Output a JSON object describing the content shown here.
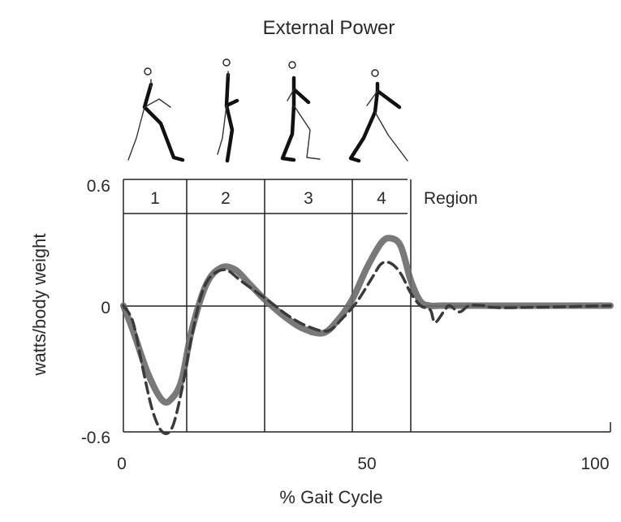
{
  "chart_data": {
    "type": "line",
    "title": "External Power",
    "xlabel": "% Gait Cycle",
    "ylabel": "watts/body weight",
    "xlim": [
      0,
      100
    ],
    "ylim": [
      -0.6,
      0.6
    ],
    "x_ticks": [
      "0",
      "50",
      "100"
    ],
    "y_ticks": [
      "0.6",
      "0",
      "-0.6"
    ],
    "regions_title": "Region",
    "regions": [
      {
        "label": "1",
        "start": 0,
        "end": 13
      },
      {
        "label": "2",
        "start": 13,
        "end": 29
      },
      {
        "label": "3",
        "start": 29,
        "end": 47
      },
      {
        "label": "4",
        "start": 47,
        "end": 59
      }
    ],
    "series": [
      {
        "style": "solid-thick",
        "color": "#6a6a6a",
        "x": [
          0,
          2,
          5,
          8,
          10,
          12,
          14,
          17,
          20,
          23,
          26,
          29,
          33,
          37,
          41,
          44,
          47,
          50,
          53,
          55,
          57,
          59,
          61,
          63,
          65,
          70,
          80,
          100
        ],
        "y": [
          0,
          -0.12,
          -0.32,
          -0.45,
          -0.44,
          -0.35,
          -0.12,
          0.1,
          0.18,
          0.17,
          0.1,
          0.03,
          -0.05,
          -0.11,
          -0.13,
          -0.07,
          0.03,
          0.18,
          0.3,
          0.32,
          0.28,
          0.12,
          0.02,
          0,
          0,
          0,
          0,
          0
        ]
      },
      {
        "style": "dashed",
        "color": "#3a3a3a",
        "x": [
          0,
          2,
          4,
          6,
          8,
          10,
          12,
          14,
          16,
          18,
          21,
          24,
          27,
          30,
          34,
          38,
          42,
          45,
          48,
          51,
          53,
          55,
          57,
          59,
          61,
          63,
          64,
          66,
          67,
          69,
          71,
          74,
          78,
          100
        ],
        "y": [
          0,
          -0.08,
          -0.3,
          -0.5,
          -0.6,
          -0.58,
          -0.4,
          -0.15,
          0.05,
          0.14,
          0.17,
          0.12,
          0.07,
          0.02,
          -0.05,
          -0.1,
          -0.12,
          -0.06,
          0.02,
          0.13,
          0.2,
          0.2,
          0.15,
          0.06,
          0.0,
          -0.02,
          -0.08,
          -0.02,
          0.0,
          -0.03,
          0.0,
          0.0,
          -0.01,
          0.0
        ]
      }
    ],
    "grid": false,
    "legend": "none"
  },
  "figures": {
    "description_icons": [
      "walking-figure-icon",
      "walking-figure-icon",
      "walking-figure-icon",
      "walking-figure-icon"
    ]
  }
}
